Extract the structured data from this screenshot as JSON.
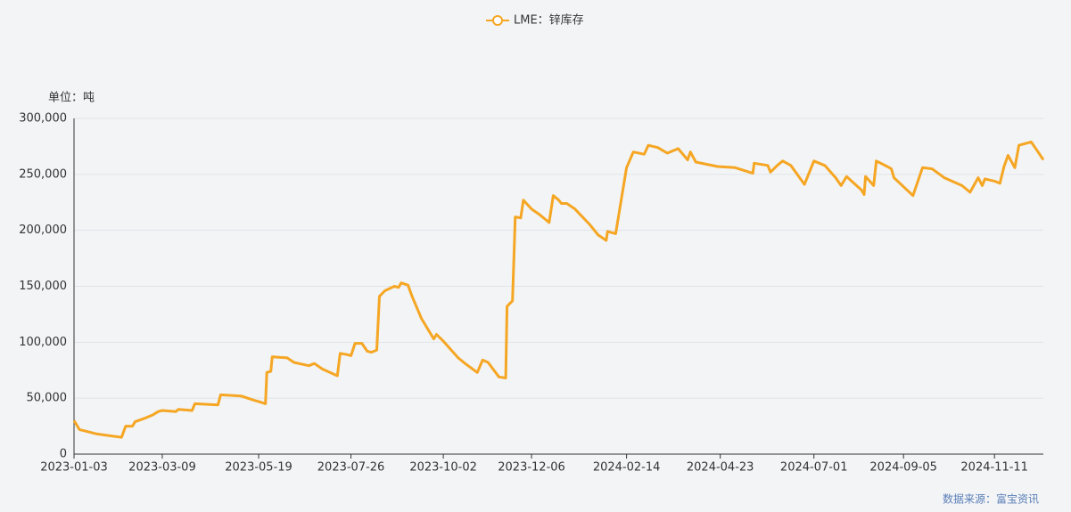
{
  "chart_data": {
    "type": "line",
    "unit_label": "单位：吨",
    "source": "数据来源：富宝资讯",
    "x": [
      "2023-01-03",
      "2023-01-07",
      "2023-01-20",
      "2023-02-07",
      "2023-02-10",
      "2023-02-15",
      "2023-02-17",
      "2023-02-24",
      "2023-03-02",
      "2023-03-06",
      "2023-03-09",
      "2023-03-19",
      "2023-03-21",
      "2023-03-31",
      "2023-04-02",
      "2023-04-19",
      "2023-04-21",
      "2023-05-06",
      "2023-05-16",
      "2023-05-19",
      "2023-05-24",
      "2023-05-25",
      "2023-05-28",
      "2023-05-29",
      "2023-06-09",
      "2023-06-14",
      "2023-06-25",
      "2023-06-29",
      "2023-07-05",
      "2023-07-16",
      "2023-07-18",
      "2023-07-23",
      "2023-07-26",
      "2023-07-29",
      "2023-08-03",
      "2023-08-07",
      "2023-08-10",
      "2023-08-14",
      "2023-08-16",
      "2023-08-20",
      "2023-08-27",
      "2023-08-30",
      "2023-09-01",
      "2023-09-06",
      "2023-09-09",
      "2023-09-16",
      "2023-09-25",
      "2023-09-27",
      "2023-10-02",
      "2023-10-13",
      "2023-10-18",
      "2023-10-27",
      "2023-10-31",
      "2023-11-04",
      "2023-11-12",
      "2023-11-17",
      "2023-11-18",
      "2023-11-22",
      "2023-11-24",
      "2023-11-28",
      "2023-11-30",
      "2023-12-06",
      "2023-12-12",
      "2023-12-19",
      "2023-12-22",
      "2023-12-26",
      "2023-12-28",
      "2024-01-01",
      "2024-01-07",
      "2024-01-18",
      "2024-01-24",
      "2024-01-30",
      "2024-01-31",
      "2024-02-06",
      "2024-02-14",
      "2024-02-19",
      "2024-02-27",
      "2024-03-01",
      "2024-03-08",
      "2024-03-15",
      "2024-03-23",
      "2024-03-30",
      "2024-04-01",
      "2024-04-05",
      "2024-04-21",
      "2024-05-04",
      "2024-05-17",
      "2024-05-18",
      "2024-05-28",
      "2024-05-30",
      "2024-06-04",
      "2024-06-08",
      "2024-06-14",
      "2024-06-24",
      "2024-07-01",
      "2024-07-09",
      "2024-07-17",
      "2024-07-21",
      "2024-07-25",
      "2024-08-05",
      "2024-08-07",
      "2024-08-08",
      "2024-08-14",
      "2024-08-16",
      "2024-08-24",
      "2024-08-27",
      "2024-08-29",
      "2024-09-05",
      "2024-09-12",
      "2024-09-19",
      "2024-09-26",
      "2024-10-05",
      "2024-10-18",
      "2024-10-24",
      "2024-10-30",
      "2024-11-02",
      "2024-11-04",
      "2024-11-11",
      "2024-11-15",
      "2024-11-18",
      "2024-11-21",
      "2024-11-26",
      "2024-11-29",
      "2024-12-08",
      "2024-12-12",
      "2024-12-17"
    ],
    "series": [
      {
        "name": "LME：锌库存",
        "color": "#f5a623",
        "values": [
          30000,
          22000,
          18000,
          15000,
          25000,
          25000,
          29000,
          32000,
          35000,
          38000,
          39000,
          38000,
          40000,
          39000,
          45000,
          44000,
          53000,
          52000,
          48000,
          47000,
          45000,
          73000,
          74000,
          87000,
          86000,
          82000,
          79000,
          81000,
          76000,
          70000,
          90000,
          89000,
          88000,
          99000,
          99000,
          92000,
          91000,
          93000,
          141000,
          146000,
          150000,
          149000,
          153000,
          151000,
          141000,
          121000,
          103000,
          107000,
          101000,
          86000,
          81000,
          73000,
          84000,
          82000,
          69000,
          68000,
          132000,
          137000,
          212000,
          211000,
          227000,
          219000,
          214000,
          207000,
          231000,
          227000,
          224000,
          224000,
          219000,
          205000,
          196000,
          191000,
          199000,
          197000,
          256000,
          270000,
          268000,
          276000,
          274000,
          269000,
          273000,
          263000,
          270000,
          261000,
          257000,
          256000,
          251000,
          260000,
          258000,
          252000,
          258000,
          262000,
          258000,
          241000,
          262000,
          258000,
          247000,
          240000,
          248000,
          236000,
          232000,
          248000,
          240000,
          262000,
          257000,
          255000,
          247000,
          239000,
          231000,
          256000,
          255000,
          247000,
          240000,
          234000,
          247000,
          240000,
          246000,
          244000,
          242000,
          257000,
          267000,
          256000,
          276000,
          279000,
          272000,
          263000
        ]
      }
    ],
    "xlim": [
      "2023-01-03",
      "2024-12-17"
    ],
    "xticks": [
      "2023-01-03",
      "2023-03-09",
      "2023-05-19",
      "2023-07-26",
      "2023-10-02",
      "2023-12-06",
      "2024-02-14",
      "2024-04-23",
      "2024-07-01",
      "2024-09-05",
      "2024-11-11"
    ],
    "ylim": [
      0,
      300000
    ],
    "yticks": [
      0,
      {
        "value": 50000,
        "label": "50,000"
      },
      {
        "value": 100000,
        "label": "100,000"
      },
      {
        "value": 150000,
        "label": "150,000"
      },
      {
        "value": 200000,
        "label": "200,000"
      },
      {
        "value": 250000,
        "label": "250,000"
      },
      {
        "value": 300000,
        "label": "300,000"
      }
    ],
    "grid": true
  }
}
